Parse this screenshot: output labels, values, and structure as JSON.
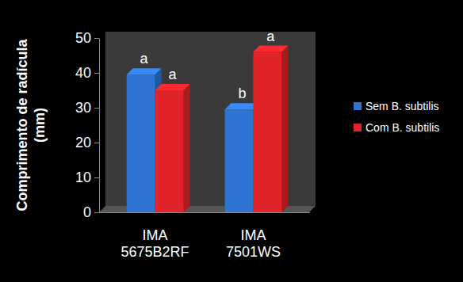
{
  "chart_data": {
    "type": "bar",
    "y_label": "Comprimento de radícula (mm)",
    "categories": [
      "IMA 5675B2RF",
      "IMA 7501WS"
    ],
    "series": [
      {
        "name": "Sem B. subtilis",
        "color": "#2e74d2",
        "values": [
          39.5,
          29.5
        ],
        "letters": [
          "a",
          "b"
        ]
      },
      {
        "name": "Com B. subtilis",
        "color": "#e02429",
        "values": [
          35,
          46
        ],
        "letters": [
          "a",
          "a"
        ]
      }
    ],
    "ylim": [
      0,
      50
    ],
    "yticks": [
      0,
      10,
      20,
      30,
      40,
      50
    ],
    "grid": false,
    "legend": "right"
  }
}
